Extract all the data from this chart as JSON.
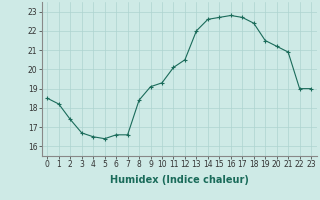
{
  "x": [
    0,
    1,
    2,
    3,
    4,
    5,
    6,
    7,
    8,
    9,
    10,
    11,
    12,
    13,
    14,
    15,
    16,
    17,
    18,
    19,
    20,
    21,
    22,
    23
  ],
  "y": [
    18.5,
    18.2,
    17.4,
    16.7,
    16.5,
    16.4,
    16.6,
    16.6,
    18.4,
    19.1,
    19.3,
    20.1,
    20.5,
    22.0,
    22.6,
    22.7,
    22.8,
    22.7,
    22.4,
    21.5,
    21.2,
    20.9,
    19.0,
    19.0
  ],
  "line_color": "#1a6b5a",
  "marker": "+",
  "marker_size": 3,
  "marker_linewidth": 0.8,
  "bg_color": "#ceeae6",
  "grid_color": "#aed4d0",
  "xlabel": "Humidex (Indice chaleur)",
  "xlim": [
    -0.5,
    23.5
  ],
  "ylim": [
    15.5,
    23.5
  ],
  "yticks": [
    16,
    17,
    18,
    19,
    20,
    21,
    22,
    23
  ],
  "xticks": [
    0,
    1,
    2,
    3,
    4,
    5,
    6,
    7,
    8,
    9,
    10,
    11,
    12,
    13,
    14,
    15,
    16,
    17,
    18,
    19,
    20,
    21,
    22,
    23
  ],
  "tick_fontsize": 5.5,
  "xlabel_fontsize": 7,
  "line_width": 0.8
}
